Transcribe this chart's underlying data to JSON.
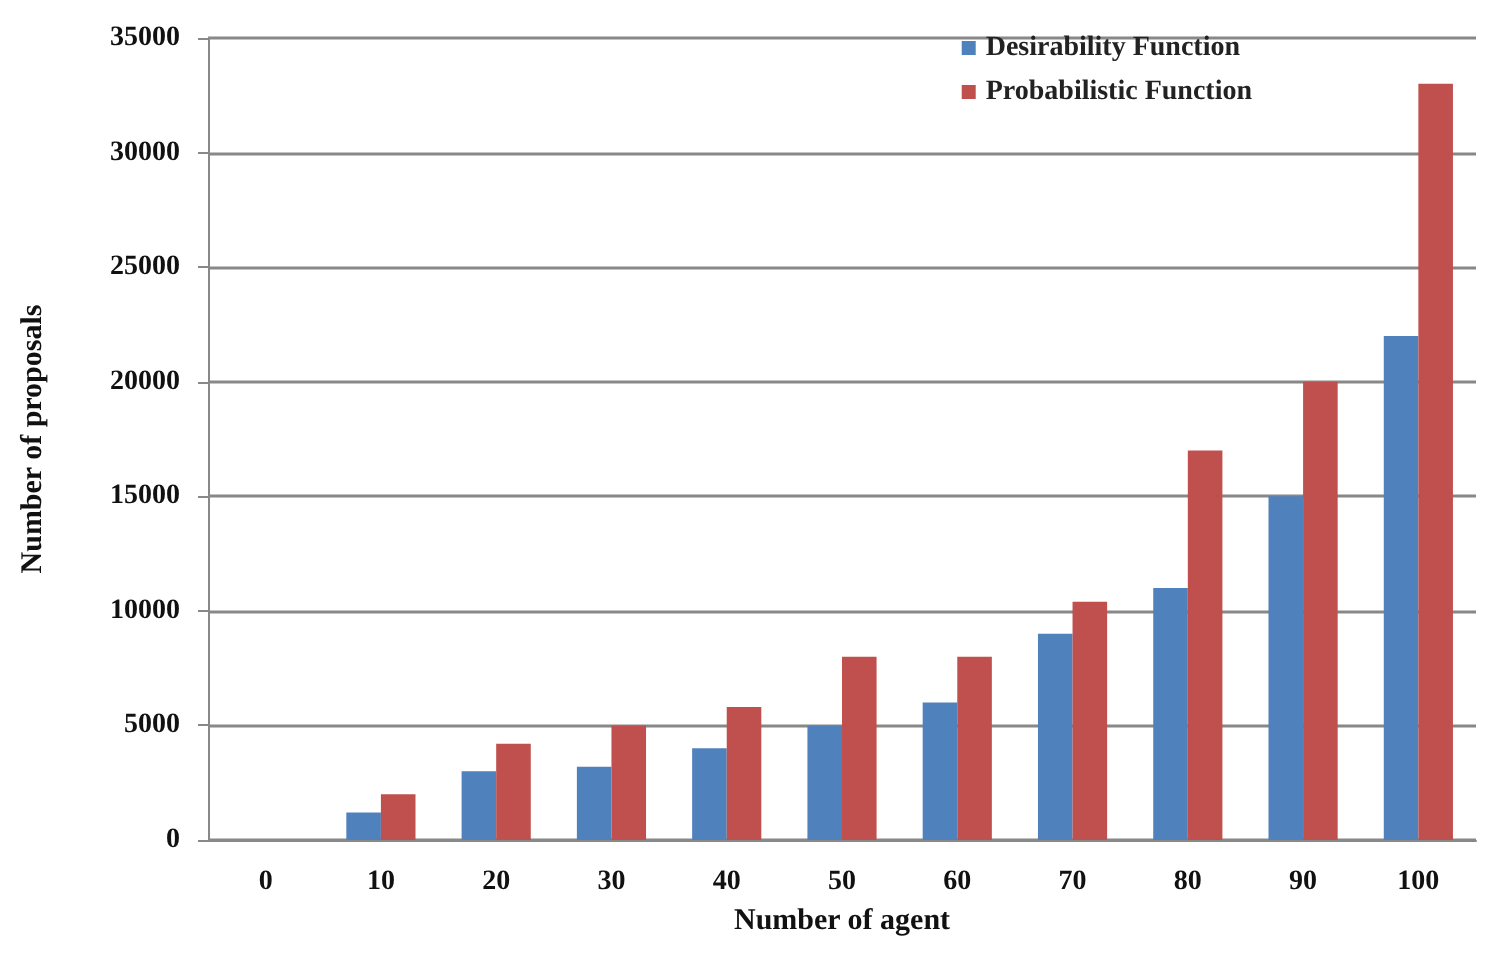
{
  "chart_data": {
    "type": "bar",
    "xlabel": "Number of agent",
    "ylabel": "Number of proposals",
    "categories": [
      "0",
      "10",
      "20",
      "30",
      "40",
      "50",
      "60",
      "70",
      "80",
      "90",
      "100"
    ],
    "series": [
      {
        "name": "Desirability Function",
        "color": "#4f81bd",
        "values": [
          null,
          1200,
          3000,
          3200,
          4000,
          5000,
          6000,
          9000,
          11000,
          15000,
          22000
        ]
      },
      {
        "name": "Probabilistic Function",
        "color": "#c0504d",
        "values": [
          null,
          2000,
          4200,
          5000,
          5800,
          8000,
          8000,
          10400,
          17000,
          20000,
          33000
        ]
      }
    ],
    "ylim": [
      0,
      35000
    ],
    "yticks": [
      0,
      5000,
      10000,
      15000,
      20000,
      25000,
      30000,
      35000
    ],
    "grid": "y",
    "legend": "top right"
  }
}
